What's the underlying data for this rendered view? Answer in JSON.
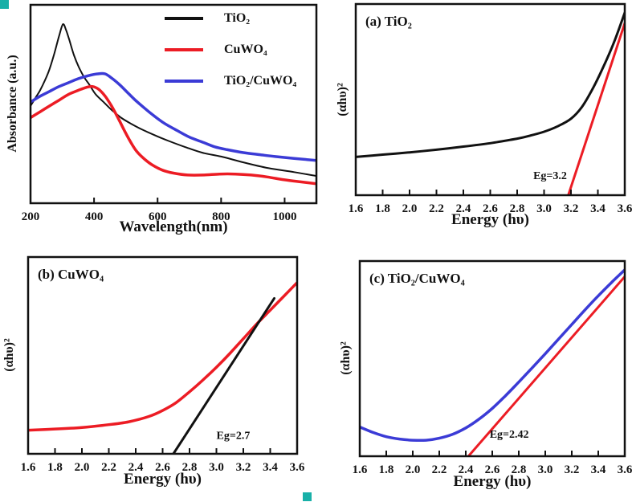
{
  "colors": {
    "black": "#111111",
    "red": "#ec1c24",
    "blue": "#3b3bd6",
    "selection_handle": "#18b0a8"
  },
  "chart_data": [
    {
      "id": "uvvis-absorbance",
      "type": "line",
      "xlabel": "Wavelength(nm)",
      "ylabel": "Absorbance (a.u.)",
      "xlim": [
        200,
        1100
      ],
      "ylim": [
        0,
        1.02
      ],
      "xticks": [
        "200",
        "400",
        "600",
        "800",
        "1000"
      ],
      "grid": false,
      "legend_position": "top-right",
      "legend": [
        {
          "label": "TiO₂",
          "color": "#111111"
        },
        {
          "label": "CuWO₄",
          "color": "#ec1c24"
        },
        {
          "label": "TiO₂/CuWO₄",
          "color": "#3b3bd6"
        }
      ],
      "series": [
        {
          "name": "TiO₂",
          "color": "#111111",
          "width": 2,
          "points": [
            [
              200,
              0.5
            ],
            [
              215,
              0.54
            ],
            [
              230,
              0.58
            ],
            [
              245,
              0.63
            ],
            [
              260,
              0.69
            ],
            [
              275,
              0.77
            ],
            [
              290,
              0.86
            ],
            [
              302,
              0.92
            ],
            [
              312,
              0.89
            ],
            [
              322,
              0.84
            ],
            [
              337,
              0.76
            ],
            [
              352,
              0.7
            ],
            [
              368,
              0.65
            ],
            [
              385,
              0.61
            ],
            [
              405,
              0.56
            ],
            [
              430,
              0.52
            ],
            [
              455,
              0.48
            ],
            [
              485,
              0.44
            ],
            [
              515,
              0.41
            ],
            [
              550,
              0.38
            ],
            [
              590,
              0.35
            ],
            [
              635,
              0.32
            ],
            [
              685,
              0.29
            ],
            [
              740,
              0.26
            ],
            [
              800,
              0.24
            ],
            [
              870,
              0.21
            ],
            [
              950,
              0.18
            ],
            [
              1030,
              0.16
            ],
            [
              1100,
              0.14
            ]
          ]
        },
        {
          "name": "CuWO₄",
          "color": "#ec1c24",
          "width": 3.5,
          "points": [
            [
              200,
              0.44
            ],
            [
              230,
              0.47
            ],
            [
              260,
              0.5
            ],
            [
              290,
              0.53
            ],
            [
              320,
              0.56
            ],
            [
              350,
              0.58
            ],
            [
              375,
              0.595
            ],
            [
              395,
              0.6
            ],
            [
              415,
              0.585
            ],
            [
              435,
              0.55
            ],
            [
              455,
              0.5
            ],
            [
              475,
              0.44
            ],
            [
              495,
              0.375
            ],
            [
              515,
              0.315
            ],
            [
              535,
              0.265
            ],
            [
              560,
              0.225
            ],
            [
              585,
              0.195
            ],
            [
              615,
              0.17
            ],
            [
              650,
              0.155
            ],
            [
              695,
              0.145
            ],
            [
              745,
              0.145
            ],
            [
              795,
              0.15
            ],
            [
              845,
              0.15
            ],
            [
              895,
              0.145
            ],
            [
              945,
              0.135
            ],
            [
              1000,
              0.12
            ],
            [
              1050,
              0.11
            ],
            [
              1100,
              0.1
            ]
          ]
        },
        {
          "name": "TiO₂/CuWO₄",
          "color": "#3b3bd6",
          "width": 3.5,
          "points": [
            [
              200,
              0.52
            ],
            [
              230,
              0.55
            ],
            [
              260,
              0.575
            ],
            [
              290,
              0.6
            ],
            [
              320,
              0.62
            ],
            [
              350,
              0.64
            ],
            [
              380,
              0.655
            ],
            [
              410,
              0.665
            ],
            [
              435,
              0.665
            ],
            [
              458,
              0.64
            ],
            [
              480,
              0.61
            ],
            [
              505,
              0.57
            ],
            [
              530,
              0.53
            ],
            [
              558,
              0.49
            ],
            [
              588,
              0.45
            ],
            [
              622,
              0.41
            ],
            [
              660,
              0.375
            ],
            [
              700,
              0.34
            ],
            [
              740,
              0.315
            ],
            [
              780,
              0.29
            ],
            [
              820,
              0.275
            ],
            [
              870,
              0.26
            ],
            [
              920,
              0.25
            ],
            [
              970,
              0.24
            ],
            [
              1030,
              0.23
            ],
            [
              1100,
              0.22
            ]
          ]
        }
      ]
    },
    {
      "id": "tauc-tio2",
      "type": "line",
      "panel_label": "(a) TiO₂",
      "xlabel": "Energy (hυ)",
      "ylabel": "(αhυ)²",
      "xlim": [
        1.6,
        3.6
      ],
      "ylim": [
        0,
        1.0
      ],
      "xticks": [
        "1.6",
        "1.8",
        "2.0",
        "2.2",
        "2.4",
        "2.6",
        "2.8",
        "3.0",
        "3.2",
        "3.4",
        "3.6"
      ],
      "band_gap": 3.2,
      "annotation": {
        "text": "Eg=3.2",
        "x": 2.92,
        "y": 0.085
      },
      "series": [
        {
          "name": "TiO₂ absorption",
          "color": "#111111",
          "width": 3,
          "points": [
            [
              1.6,
              0.2
            ],
            [
              1.8,
              0.212
            ],
            [
              2.0,
              0.224
            ],
            [
              2.2,
              0.238
            ],
            [
              2.4,
              0.254
            ],
            [
              2.6,
              0.272
            ],
            [
              2.8,
              0.296
            ],
            [
              2.9,
              0.312
            ],
            [
              3.0,
              0.332
            ],
            [
              3.1,
              0.36
            ],
            [
              3.2,
              0.4
            ],
            [
              3.28,
              0.46
            ],
            [
              3.36,
              0.555
            ],
            [
              3.44,
              0.67
            ],
            [
              3.52,
              0.8
            ],
            [
              3.6,
              0.955
            ]
          ]
        },
        {
          "name": "tangent",
          "color": "#ec1c24",
          "width": 3,
          "points": [
            [
              3.18,
              0.0
            ],
            [
              3.6,
              0.9
            ]
          ]
        }
      ]
    },
    {
      "id": "tauc-cuwo4",
      "type": "line",
      "panel_label": "(b) CuWO₄",
      "xlabel": "Energy (hυ)",
      "ylabel": "(αhυ)²",
      "xlim": [
        1.6,
        3.6
      ],
      "ylim": [
        0,
        1.0
      ],
      "xticks": [
        "1.6",
        "1.8",
        "2.0",
        "2.2",
        "2.4",
        "2.6",
        "2.8",
        "3.0",
        "3.2",
        "3.4",
        "3.6"
      ],
      "band_gap": 2.7,
      "annotation": {
        "text": "Eg=2.7",
        "x": 3.0,
        "y": 0.075
      },
      "series": [
        {
          "name": "CuWO₄ absorption",
          "color": "#ec1c24",
          "width": 3.5,
          "points": [
            [
              1.6,
              0.12
            ],
            [
              1.8,
              0.126
            ],
            [
              2.0,
              0.134
            ],
            [
              2.2,
              0.148
            ],
            [
              2.35,
              0.163
            ],
            [
              2.5,
              0.19
            ],
            [
              2.6,
              0.22
            ],
            [
              2.7,
              0.26
            ],
            [
              2.8,
              0.315
            ],
            [
              2.9,
              0.375
            ],
            [
              3.0,
              0.44
            ],
            [
              3.1,
              0.51
            ],
            [
              3.2,
              0.585
            ],
            [
              3.3,
              0.66
            ],
            [
              3.4,
              0.73
            ],
            [
              3.5,
              0.8
            ],
            [
              3.6,
              0.87
            ]
          ]
        },
        {
          "name": "tangent",
          "color": "#111111",
          "width": 3,
          "points": [
            [
              2.68,
              0.0
            ],
            [
              3.43,
              0.79
            ]
          ]
        }
      ]
    },
    {
      "id": "tauc-tio2-cuwo4",
      "type": "line",
      "panel_label": "(c) TiO₂/CuWO₄",
      "xlabel": "Energy (hυ)",
      "ylabel": "(αhυ)²",
      "xlim": [
        1.6,
        3.6
      ],
      "ylim": [
        0,
        1.0
      ],
      "xticks": [
        "1.6",
        "1.8",
        "2.0",
        "2.2",
        "2.4",
        "2.6",
        "2.8",
        "3.0",
        "3.2",
        "3.4",
        "3.6"
      ],
      "band_gap": 2.42,
      "annotation": {
        "text": "Eg=2.42",
        "x": 2.58,
        "y": 0.095
      },
      "series": [
        {
          "name": "TiO₂/CuWO₄ absorption",
          "color": "#3b3bd6",
          "width": 3.5,
          "points": [
            [
              1.6,
              0.15
            ],
            [
              1.7,
              0.122
            ],
            [
              1.8,
              0.1
            ],
            [
              1.9,
              0.088
            ],
            [
              2.0,
              0.082
            ],
            [
              2.1,
              0.082
            ],
            [
              2.2,
              0.092
            ],
            [
              2.3,
              0.112
            ],
            [
              2.4,
              0.145
            ],
            [
              2.5,
              0.19
            ],
            [
              2.6,
              0.245
            ],
            [
              2.7,
              0.31
            ],
            [
              2.8,
              0.38
            ],
            [
              2.9,
              0.452
            ],
            [
              3.0,
              0.525
            ],
            [
              3.1,
              0.6
            ],
            [
              3.2,
              0.675
            ],
            [
              3.3,
              0.75
            ],
            [
              3.4,
              0.822
            ],
            [
              3.5,
              0.89
            ],
            [
              3.6,
              0.955
            ]
          ]
        },
        {
          "name": "tangent",
          "color": "#ec1c24",
          "width": 3,
          "points": [
            [
              2.42,
              0.0
            ],
            [
              3.6,
              0.92
            ]
          ]
        }
      ]
    }
  ]
}
